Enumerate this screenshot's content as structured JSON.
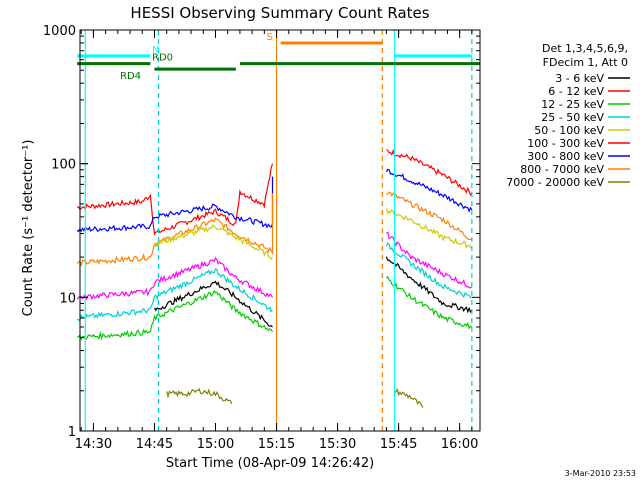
{
  "chart_data": {
    "type": "line",
    "title": "HESSI Observing Summary Count Rates",
    "xlabel": "Start Time (08-Apr-09 14:26:42)",
    "ylabel": "Count Rate (s⁻¹ detector⁻¹)",
    "y_scale": "log",
    "ylim": [
      1,
      1000
    ],
    "xlim": [
      "14:26:42",
      "16:05:00"
    ],
    "x_ticks": [
      "14:30",
      "14:45",
      "15:00",
      "15:15",
      "15:30",
      "15:45",
      "16:00"
    ],
    "y_ticks": [
      "1",
      "10",
      "100",
      "1000"
    ],
    "legend": {
      "placement": "right",
      "header": [
        "Det 1,3,4,5,6,9,",
        "FDecim 1, Att 0"
      ],
      "entries": [
        {
          "label": "3 - 6 keV",
          "color": "#000000"
        },
        {
          "label": "6 - 12 keV",
          "color": "#ff0000"
        },
        {
          "label": "12 - 25 keV",
          "color": "#00cc00"
        },
        {
          "label": "25 - 50 keV",
          "color": "#00d0d0"
        },
        {
          "label": "50 - 100 keV",
          "color": "#cccc00"
        },
        {
          "label": "100 - 300 keV",
          "color": "#ff0000"
        },
        {
          "label": "300 - 800 keV",
          "color": "#0000ff"
        },
        {
          "label": "800 - 7000 keV",
          "color": "#ff8000"
        },
        {
          "label": "7000 - 20000 keV",
          "color": "#808000"
        }
      ]
    },
    "flags": [
      {
        "label": "N",
        "color": "#00ffff"
      },
      {
        "label": "RD0",
        "color": "#007000"
      },
      {
        "label": "RD4",
        "color": "#007000"
      },
      {
        "label": "S",
        "color": "#ff8000"
      }
    ],
    "series": [
      {
        "color": "#ff0000",
        "segments": [
          [
            [
              "14:26",
              47
            ],
            [
              "14:42",
              52
            ],
            [
              "14:44",
              58
            ],
            [
              "14:45",
              30
            ],
            [
              "15:00",
              44
            ],
            [
              "15:05",
              35
            ],
            [
              "15:06",
              62
            ],
            [
              "15:09",
              55
            ],
            [
              "15:12",
              50
            ],
            [
              "15:14",
              100
            ]
          ],
          [
            [
              "15:42",
              125
            ],
            [
              "15:48",
              110
            ],
            [
              "15:56",
              82
            ],
            [
              "16:03",
              60
            ]
          ]
        ]
      },
      {
        "color": "#0000ff",
        "segments": [
          [
            [
              "14:26",
              32
            ],
            [
              "14:44",
              34
            ],
            [
              "14:45",
              40
            ],
            [
              "15:00",
              48
            ],
            [
              "15:05",
              40
            ],
            [
              "15:14",
              34
            ],
            [
              "15:14",
              80
            ]
          ],
          [
            [
              "15:42",
              90
            ],
            [
              "15:48",
              75
            ],
            [
              "15:56",
              58
            ],
            [
              "16:03",
              45
            ]
          ]
        ]
      },
      {
        "color": "#ff8000",
        "segments": [
          [
            [
              "14:26",
              18
            ],
            [
              "14:44",
              20
            ],
            [
              "14:45",
              25
            ],
            [
              "15:00",
              38
            ],
            [
              "15:05",
              30
            ],
            [
              "15:14",
              22
            ],
            [
              "15:14",
              60
            ]
          ],
          [
            [
              "15:42",
              62
            ],
            [
              "15:48",
              50
            ],
            [
              "15:56",
              38
            ],
            [
              "16:03",
              27
            ]
          ]
        ]
      },
      {
        "color": "#cccc00",
        "segments": [
          [
            [
              "14:45",
              25
            ],
            [
              "15:00",
              34
            ],
            [
              "15:05",
              28
            ],
            [
              "15:14",
              20
            ]
          ],
          [
            [
              "15:42",
              45
            ],
            [
              "15:48",
              38
            ],
            [
              "15:56",
              28
            ],
            [
              "16:03",
              24
            ]
          ]
        ]
      },
      {
        "color": "#ff00ff",
        "segments": [
          [
            [
              "14:26",
              10
            ],
            [
              "14:44",
              11
            ],
            [
              "14:45",
              13
            ],
            [
              "15:00",
              19
            ],
            [
              "15:05",
              14
            ],
            [
              "15:14",
              10
            ]
          ],
          [
            [
              "15:42",
              30
            ],
            [
              "15:48",
              20
            ],
            [
              "15:56",
              15
            ],
            [
              "16:03",
              12
            ]
          ]
        ]
      },
      {
        "color": "#00d0d0",
        "segments": [
          [
            [
              "14:26",
              7
            ],
            [
              "14:44",
              8
            ],
            [
              "14:45",
              10
            ],
            [
              "15:00",
              16
            ],
            [
              "15:05",
              12
            ],
            [
              "15:14",
              8
            ]
          ],
          [
            [
              "15:42",
              25
            ],
            [
              "15:48",
              18
            ],
            [
              "15:56",
              12
            ],
            [
              "16:03",
              10
            ]
          ]
        ]
      },
      {
        "color": "#000000",
        "segments": [
          [
            [
              "14:45",
              8
            ],
            [
              "15:00",
              13
            ],
            [
              "15:05",
              10
            ],
            [
              "15:14",
              6
            ]
          ],
          [
            [
              "15:42",
              20
            ],
            [
              "15:48",
              14
            ],
            [
              "15:56",
              9
            ],
            [
              "16:03",
              8
            ]
          ]
        ]
      },
      {
        "color": "#00cc00",
        "segments": [
          [
            [
              "14:26",
              5
            ],
            [
              "14:44",
              5.5
            ],
            [
              "14:45",
              7
            ],
            [
              "15:00",
              11
            ],
            [
              "15:05",
              8
            ],
            [
              "15:14",
              5.5
            ]
          ],
          [
            [
              "15:42",
              14
            ],
            [
              "15:48",
              10
            ],
            [
              "15:56",
              7
            ],
            [
              "16:03",
              6
            ]
          ]
        ]
      },
      {
        "color": "#808000",
        "segments": [
          [
            [
              "14:48",
              1.9
            ],
            [
              "14:53",
              1.9
            ],
            [
              "14:56",
              2.0
            ],
            [
              "15:00",
              1.9
            ],
            [
              "15:04",
              1.6
            ]
          ],
          [
            [
              "15:44",
              2.0
            ],
            [
              "15:48",
              1.8
            ],
            [
              "15:51",
              1.5
            ]
          ]
        ]
      }
    ],
    "vlines": [
      {
        "x": "14:28",
        "color": "#00ffff",
        "style": "solid"
      },
      {
        "x": "14:46",
        "color": "#00d0d0",
        "style": "dashed"
      },
      {
        "x": "15:15",
        "color": "#ff8000",
        "style": "solid"
      },
      {
        "x": "15:41",
        "color": "#ff8000",
        "style": "dashed"
      },
      {
        "x": "15:44",
        "color": "#00ffff",
        "style": "solid"
      },
      {
        "x": "16:03",
        "color": "#00d0d0",
        "style": "dashed"
      }
    ],
    "flag_bars": [
      {
        "flag": "N",
        "color": "#00ffff",
        "y_level": 640,
        "spans": [
          [
            "14:26",
            "14:44"
          ],
          [
            "15:44",
            "16:03"
          ]
        ]
      },
      {
        "flag": "RD0",
        "color": "#007000",
        "y_level": 560,
        "spans": [
          [
            "14:26",
            "14:44"
          ],
          [
            "15:06",
            "16:05"
          ]
        ]
      },
      {
        "flag": "RD4",
        "color": "#007000",
        "y_level": 510,
        "spans": [
          [
            "14:45",
            "15:05"
          ]
        ]
      },
      {
        "flag": "S",
        "color": "#ff8000",
        "y_level": 800,
        "spans": [
          [
            "15:16",
            "15:41"
          ]
        ]
      }
    ]
  },
  "footer_date": "3-Mar-2010 23:53"
}
